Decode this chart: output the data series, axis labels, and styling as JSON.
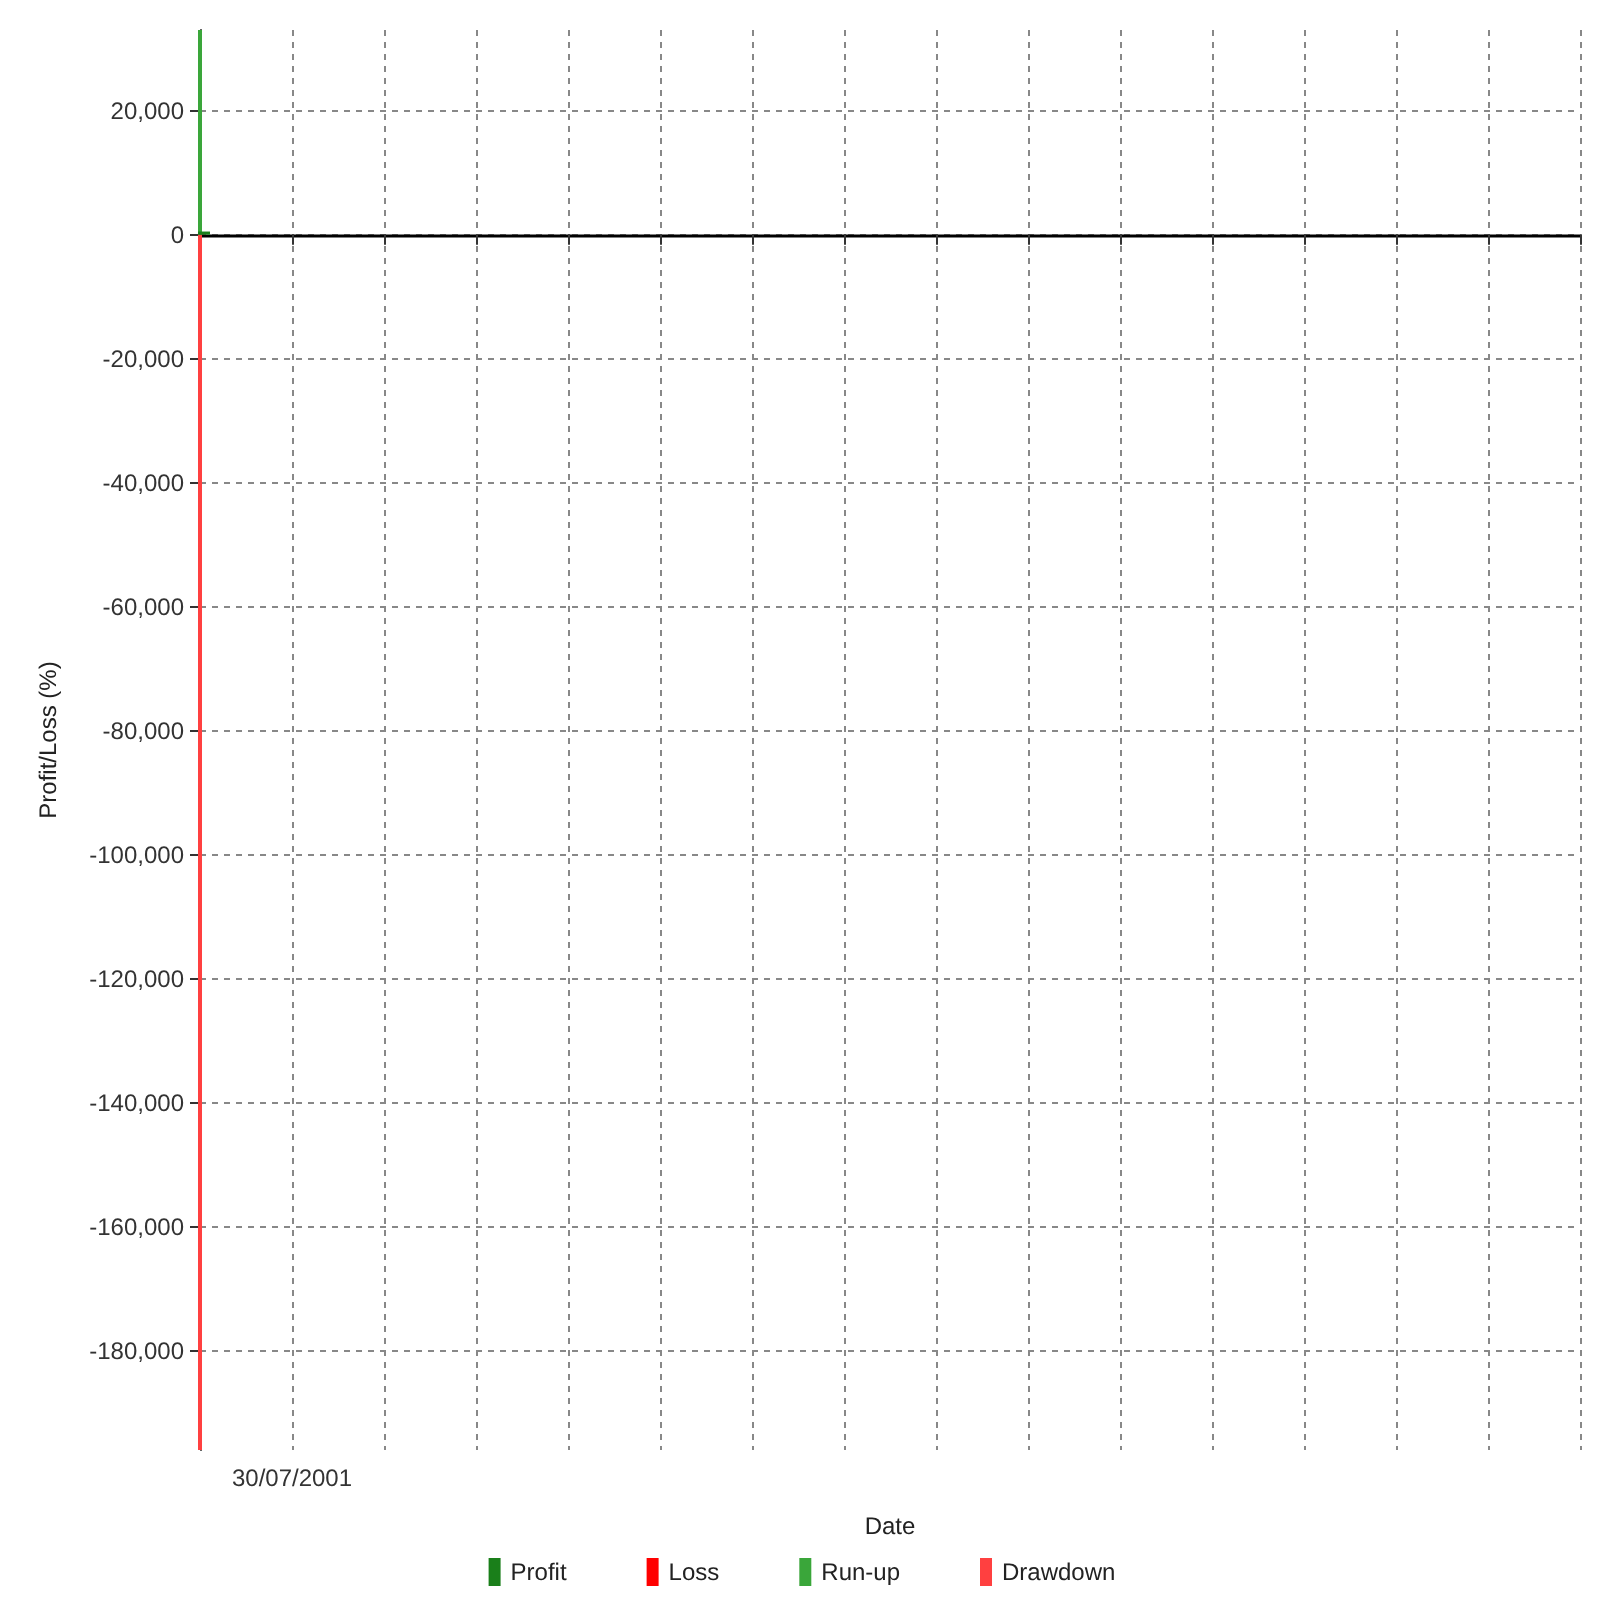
{
  "chart_data": {
    "type": "bar",
    "xlabel": "Date",
    "ylabel": "Profit/Loss (%)",
    "categories": [
      null,
      "30/07/2001",
      null,
      null,
      null,
      null,
      null,
      null,
      null,
      null,
      null,
      null,
      null,
      null,
      null,
      null
    ],
    "series": [
      {
        "name": "Profit",
        "color": "#1a7f1a",
        "values": [
          500,
          null,
          null,
          null,
          null,
          null,
          null,
          null,
          null,
          null,
          null,
          null,
          null,
          null,
          null,
          null
        ]
      },
      {
        "name": "Loss",
        "color": "#ff0000",
        "values": [
          null,
          null,
          null,
          null,
          null,
          null,
          null,
          null,
          null,
          null,
          null,
          null,
          null,
          null,
          null,
          null
        ]
      },
      {
        "name": "Run-up",
        "color": "#3aa63a",
        "values": [
          33000,
          null,
          null,
          null,
          null,
          null,
          null,
          null,
          null,
          null,
          null,
          null,
          null,
          null,
          null,
          null
        ]
      },
      {
        "name": "Drawdown",
        "color": "#ff4040",
        "values": [
          -196000,
          null,
          null,
          null,
          null,
          null,
          null,
          null,
          null,
          null,
          null,
          null,
          null,
          null,
          null,
          null
        ]
      }
    ],
    "ylim": [
      -196000,
      33000
    ],
    "yticks": [
      {
        "value": -180000,
        "label": "-180,000"
      },
      {
        "value": -160000,
        "label": "-160,000"
      },
      {
        "value": -140000,
        "label": "-140,000"
      },
      {
        "value": -120000,
        "label": "-120,000"
      },
      {
        "value": -100000,
        "label": "-100,000"
      },
      {
        "value": -80000,
        "label": "-80,000"
      },
      {
        "value": -60000,
        "label": "-60,000"
      },
      {
        "value": -40000,
        "label": "-40,000"
      },
      {
        "value": -20000,
        "label": "-20,000"
      },
      0,
      {
        "value": 20000,
        "label": "20,000"
      }
    ],
    "grid": true,
    "legend": "bottom"
  }
}
